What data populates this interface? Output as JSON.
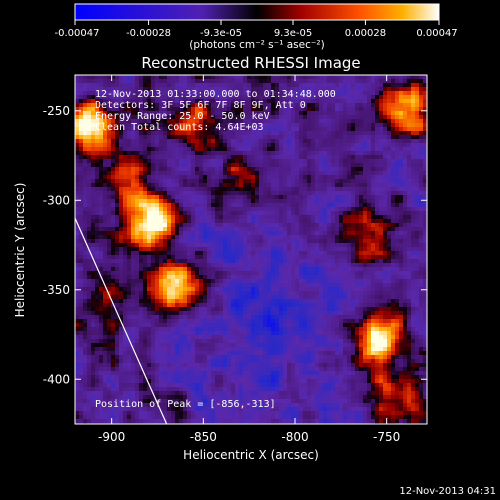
{
  "chart_data": {
    "type": "heatmap",
    "title": "Reconstructed RHESSI Image",
    "xlabel": "Heliocentric X (arcsec)",
    "ylabel": "Heliocentric Y (arcsec)",
    "xlim": [
      -920,
      -728
    ],
    "ylim": [
      -425,
      -230
    ],
    "xticks": [
      -900,
      -850,
      -800,
      -750
    ],
    "yticks": [
      -250,
      -300,
      -350,
      -400
    ],
    "colorbar": {
      "min": -0.00047,
      "max": 0.00047,
      "ticks": [
        -0.00047,
        -0.00028,
        -9.3e-05,
        9.3e-05,
        0.00028,
        0.00047
      ],
      "tick_labels": [
        "-0.00047",
        "-0.00028",
        "-9.3e-05",
        "9.3e-05",
        "0.00028",
        "0.00047"
      ],
      "unit_label": "(photons cm⁻² s⁻¹ asec⁻²)"
    },
    "info_lines": [
      "12-Nov-2013 01:33:00.000 to 01:34:48.000",
      "Detectors: 3F 5F 6F 7F 8F 9F, Att 0",
      "Energy Range: 25.0 - 50.0 keV",
      "Clean    Total counts: 4.64E+03"
    ],
    "peak_label": "Position of Peak = [-856,-313]",
    "peak": [
      -856,
      -313
    ],
    "hotspots": [
      {
        "x": -878,
        "y": -313,
        "v": 1.0
      },
      {
        "x": -866,
        "y": -350,
        "v": 0.95
      },
      {
        "x": -755,
        "y": -378,
        "v": 0.85
      },
      {
        "x": -740,
        "y": -248,
        "v": 0.8
      },
      {
        "x": -912,
        "y": -258,
        "v": 0.7
      },
      {
        "x": -892,
        "y": -288,
        "v": 0.6
      },
      {
        "x": -855,
        "y": -258,
        "v": 0.45
      },
      {
        "x": -830,
        "y": -290,
        "v": 0.35
      },
      {
        "x": -760,
        "y": -320,
        "v": 0.4
      },
      {
        "x": -905,
        "y": -360,
        "v": 0.35
      },
      {
        "x": -745,
        "y": -410,
        "v": 0.5
      }
    ],
    "limb": [
      [
        -920,
        -310
      ],
      [
        -870,
        -425
      ]
    ]
  },
  "footer": {
    "timestamp": "12-Nov-2013 04:31"
  }
}
